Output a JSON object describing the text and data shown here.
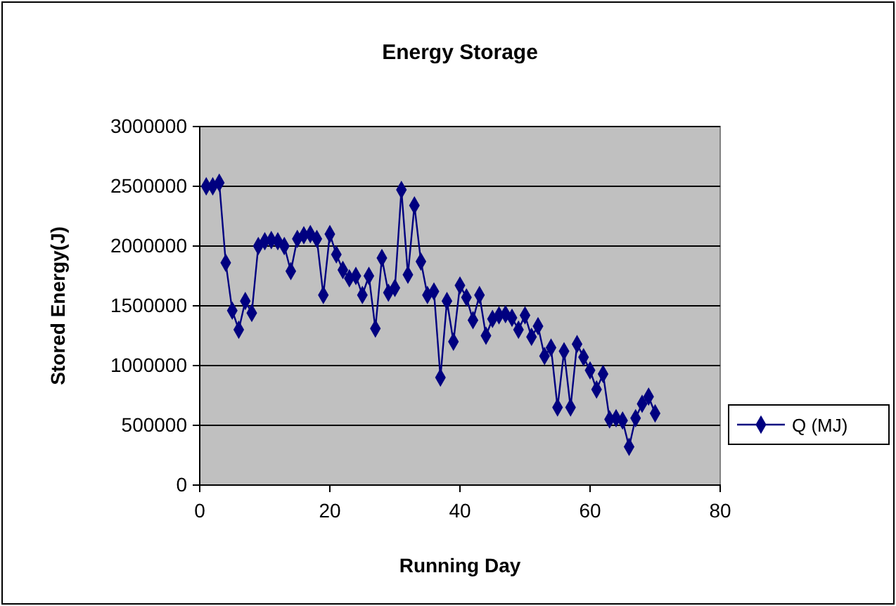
{
  "chart_data": {
    "type": "line",
    "title": "Energy Storage",
    "xlabel": "Running Day",
    "ylabel": "Stored Energy(J)",
    "xlim": [
      0,
      80
    ],
    "xticks": [
      0,
      20,
      40,
      60,
      80
    ],
    "ylim": [
      0,
      3000000
    ],
    "yticks": [
      0,
      500000,
      1000000,
      1500000,
      2000000,
      2500000,
      3000000
    ],
    "grid": "y",
    "legend": "right",
    "marker": "diamond",
    "line_style": "solid",
    "series": [
      {
        "name": "Q (MJ)",
        "color": "#000080",
        "x": [
          1,
          2,
          3,
          4,
          5,
          6,
          7,
          8,
          9,
          10,
          11,
          12,
          13,
          14,
          15,
          16,
          17,
          18,
          19,
          20,
          21,
          22,
          23,
          24,
          25,
          26,
          27,
          28,
          29,
          30,
          31,
          32,
          33,
          34,
          35,
          36,
          37,
          38,
          39,
          40,
          41,
          42,
          43,
          44,
          45,
          46,
          47,
          48,
          49,
          50,
          51,
          52,
          53,
          54,
          55,
          56,
          57,
          58,
          59,
          60,
          61,
          62,
          63,
          64,
          65,
          66,
          67,
          68,
          69,
          70
        ],
        "values": [
          2500000,
          2500000,
          2530000,
          1860000,
          1460000,
          1300000,
          1540000,
          1440000,
          2000000,
          2040000,
          2050000,
          2040000,
          2000000,
          1790000,
          2060000,
          2090000,
          2100000,
          2060000,
          1590000,
          2100000,
          1930000,
          1800000,
          1730000,
          1750000,
          1590000,
          1750000,
          1310000,
          1900000,
          1610000,
          1650000,
          2470000,
          1760000,
          2340000,
          1870000,
          1590000,
          1620000,
          900000,
          1540000,
          1200000,
          1670000,
          1570000,
          1380000,
          1590000,
          1250000,
          1390000,
          1420000,
          1430000,
          1400000,
          1300000,
          1420000,
          1240000,
          1330000,
          1080000,
          1150000,
          650000,
          1120000,
          650000,
          1180000,
          1070000,
          960000,
          800000,
          930000,
          550000,
          560000,
          540000,
          320000,
          560000,
          680000,
          740000,
          600000
        ]
      }
    ]
  }
}
